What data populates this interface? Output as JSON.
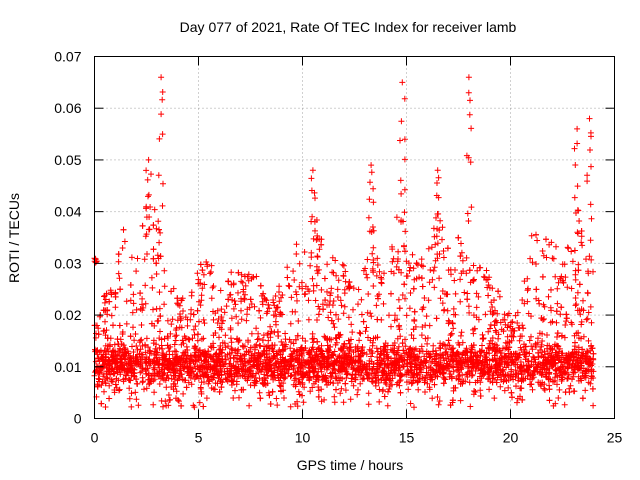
{
  "chart_data": {
    "type": "scatter",
    "title": "Day 077 of 2021, Rate Of TEC Index for receiver lamb",
    "xlabel": "GPS time / hours",
    "ylabel": "ROTI / TECUs",
    "xlim": [
      0,
      25
    ],
    "ylim": [
      0,
      0.07
    ],
    "x_ticks": [
      0,
      5,
      10,
      15,
      20,
      25
    ],
    "x_tick_labels": [
      "0",
      "5",
      "10",
      "15",
      "20",
      "25"
    ],
    "y_ticks": [
      0,
      0.01,
      0.02,
      0.03,
      0.04,
      0.05,
      0.06,
      0.07
    ],
    "y_tick_labels": [
      "0",
      "0.01",
      "0.02",
      "0.03",
      "0.04",
      "0.05",
      "0.06",
      "0.07"
    ],
    "grid": true,
    "marker": "+",
    "marker_color": "#ff0000",
    "data_range_hours": [
      0,
      24
    ],
    "typical_band": [
      0.005,
      0.015
    ],
    "notable_peaks": [
      {
        "x": 3.2,
        "y": 0.066
      },
      {
        "x": 14.8,
        "y": 0.065
      },
      {
        "x": 18.0,
        "y": 0.066
      },
      {
        "x": 23.8,
        "y": 0.058
      },
      {
        "x": 13.3,
        "y": 0.049
      },
      {
        "x": 10.5,
        "y": 0.048
      },
      {
        "x": 2.6,
        "y": 0.05
      },
      {
        "x": 16.5,
        "y": 0.048
      },
      {
        "x": 23.2,
        "y": 0.056
      },
      {
        "x": 0.0,
        "y": 0.031
      }
    ],
    "activity_envelope": [
      [
        0.0,
        0.02
      ],
      [
        0.5,
        0.024
      ],
      [
        1.0,
        0.028
      ],
      [
        1.5,
        0.04
      ],
      [
        2.0,
        0.03
      ],
      [
        2.5,
        0.042
      ],
      [
        3.0,
        0.04
      ],
      [
        3.5,
        0.03
      ],
      [
        4.0,
        0.025
      ],
      [
        4.5,
        0.022
      ],
      [
        5.0,
        0.03
      ],
      [
        5.5,
        0.032
      ],
      [
        6.0,
        0.024
      ],
      [
        6.5,
        0.03
      ],
      [
        7.0,
        0.028
      ],
      [
        7.5,
        0.03
      ],
      [
        8.0,
        0.026
      ],
      [
        8.5,
        0.022
      ],
      [
        9.0,
        0.028
      ],
      [
        9.5,
        0.032
      ],
      [
        10.0,
        0.036
      ],
      [
        10.5,
        0.04
      ],
      [
        11.0,
        0.036
      ],
      [
        11.5,
        0.032
      ],
      [
        12.0,
        0.03
      ],
      [
        12.5,
        0.026
      ],
      [
        13.0,
        0.03
      ],
      [
        13.5,
        0.034
      ],
      [
        14.0,
        0.028
      ],
      [
        14.5,
        0.04
      ],
      [
        15.0,
        0.038
      ],
      [
        15.5,
        0.03
      ],
      [
        16.0,
        0.034
      ],
      [
        16.5,
        0.04
      ],
      [
        17.0,
        0.034
      ],
      [
        17.5,
        0.036
      ],
      [
        18.0,
        0.03
      ],
      [
        18.5,
        0.032
      ],
      [
        19.0,
        0.028
      ],
      [
        19.5,
        0.024
      ],
      [
        20.0,
        0.02
      ],
      [
        20.5,
        0.022
      ],
      [
        21.0,
        0.036
      ],
      [
        21.5,
        0.036
      ],
      [
        22.0,
        0.034
      ],
      [
        22.5,
        0.032
      ],
      [
        23.0,
        0.038
      ],
      [
        23.5,
        0.036
      ],
      [
        24.0,
        0.03
      ]
    ]
  }
}
